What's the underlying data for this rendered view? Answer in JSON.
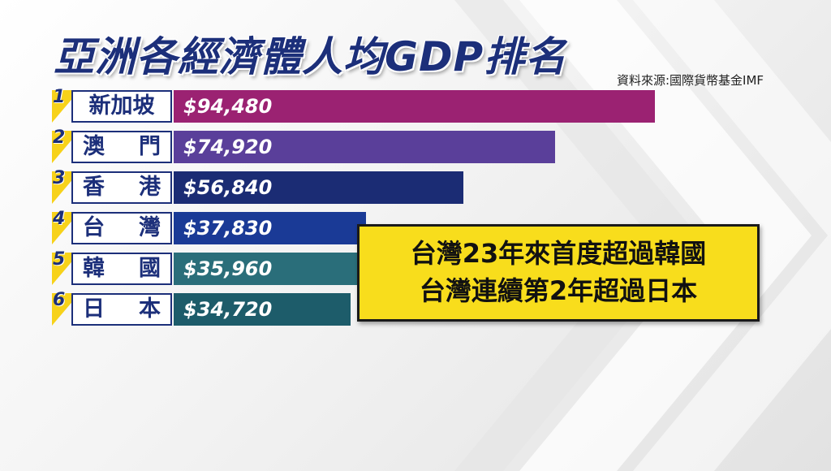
{
  "title": "亞洲各經濟體人均GDP排名",
  "source": "資料來源:國際貨幣基金IMF",
  "callout": {
    "line1": "台灣23年來首度超過韓國",
    "line2": "台灣連續第2年超過日本"
  },
  "colors": {
    "title": "#1c2f7a",
    "rank_badge": "#f7d21a",
    "callout_bg": "#f8dd1c"
  },
  "chart_data": {
    "type": "bar",
    "orientation": "horizontal",
    "title": "亞洲各經濟體人均GDP排名",
    "categories": [
      "新加坡",
      "澳門",
      "香港",
      "台灣",
      "韓國",
      "日本"
    ],
    "ranks": [
      "1",
      "2",
      "3",
      "4",
      "5",
      "6"
    ],
    "values": [
      94480,
      74920,
      56840,
      37830,
      35960,
      34720
    ],
    "value_labels": [
      "$94,480",
      "$74,920",
      "$56,840",
      "$37,830",
      "$35,960",
      "$34,720"
    ],
    "bar_colors": [
      "#9b2272",
      "#5a3f9a",
      "#1b2c74",
      "#1a3a96",
      "#2a6e7a",
      "#1d5c6a"
    ],
    "xlim": [
      0,
      100000
    ],
    "grid": false,
    "legend": "none"
  }
}
